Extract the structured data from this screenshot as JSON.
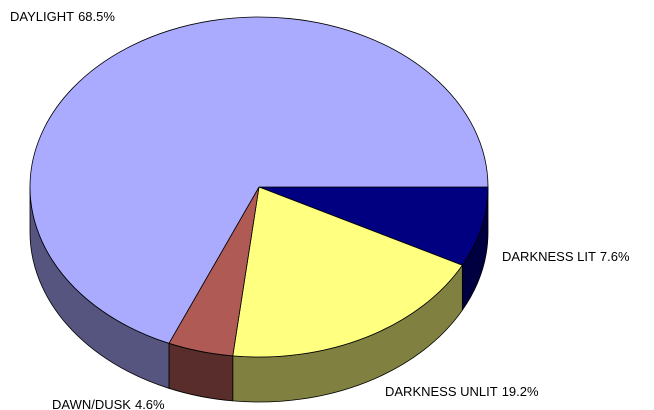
{
  "chart_data": {
    "type": "pie",
    "categories": [
      "DARKNESS LIT",
      "DARKNESS UNLIT",
      "DAWN/DUSK",
      "DAYLIGHT"
    ],
    "values": [
      7.6,
      19.2,
      4.6,
      68.5
    ],
    "value_labels": [
      "7.6%",
      "19.2%",
      "4.6%",
      "68.5%"
    ],
    "colors": [
      "#000080",
      "#ffff80",
      "#b05a55",
      "#aaaaff"
    ]
  }
}
